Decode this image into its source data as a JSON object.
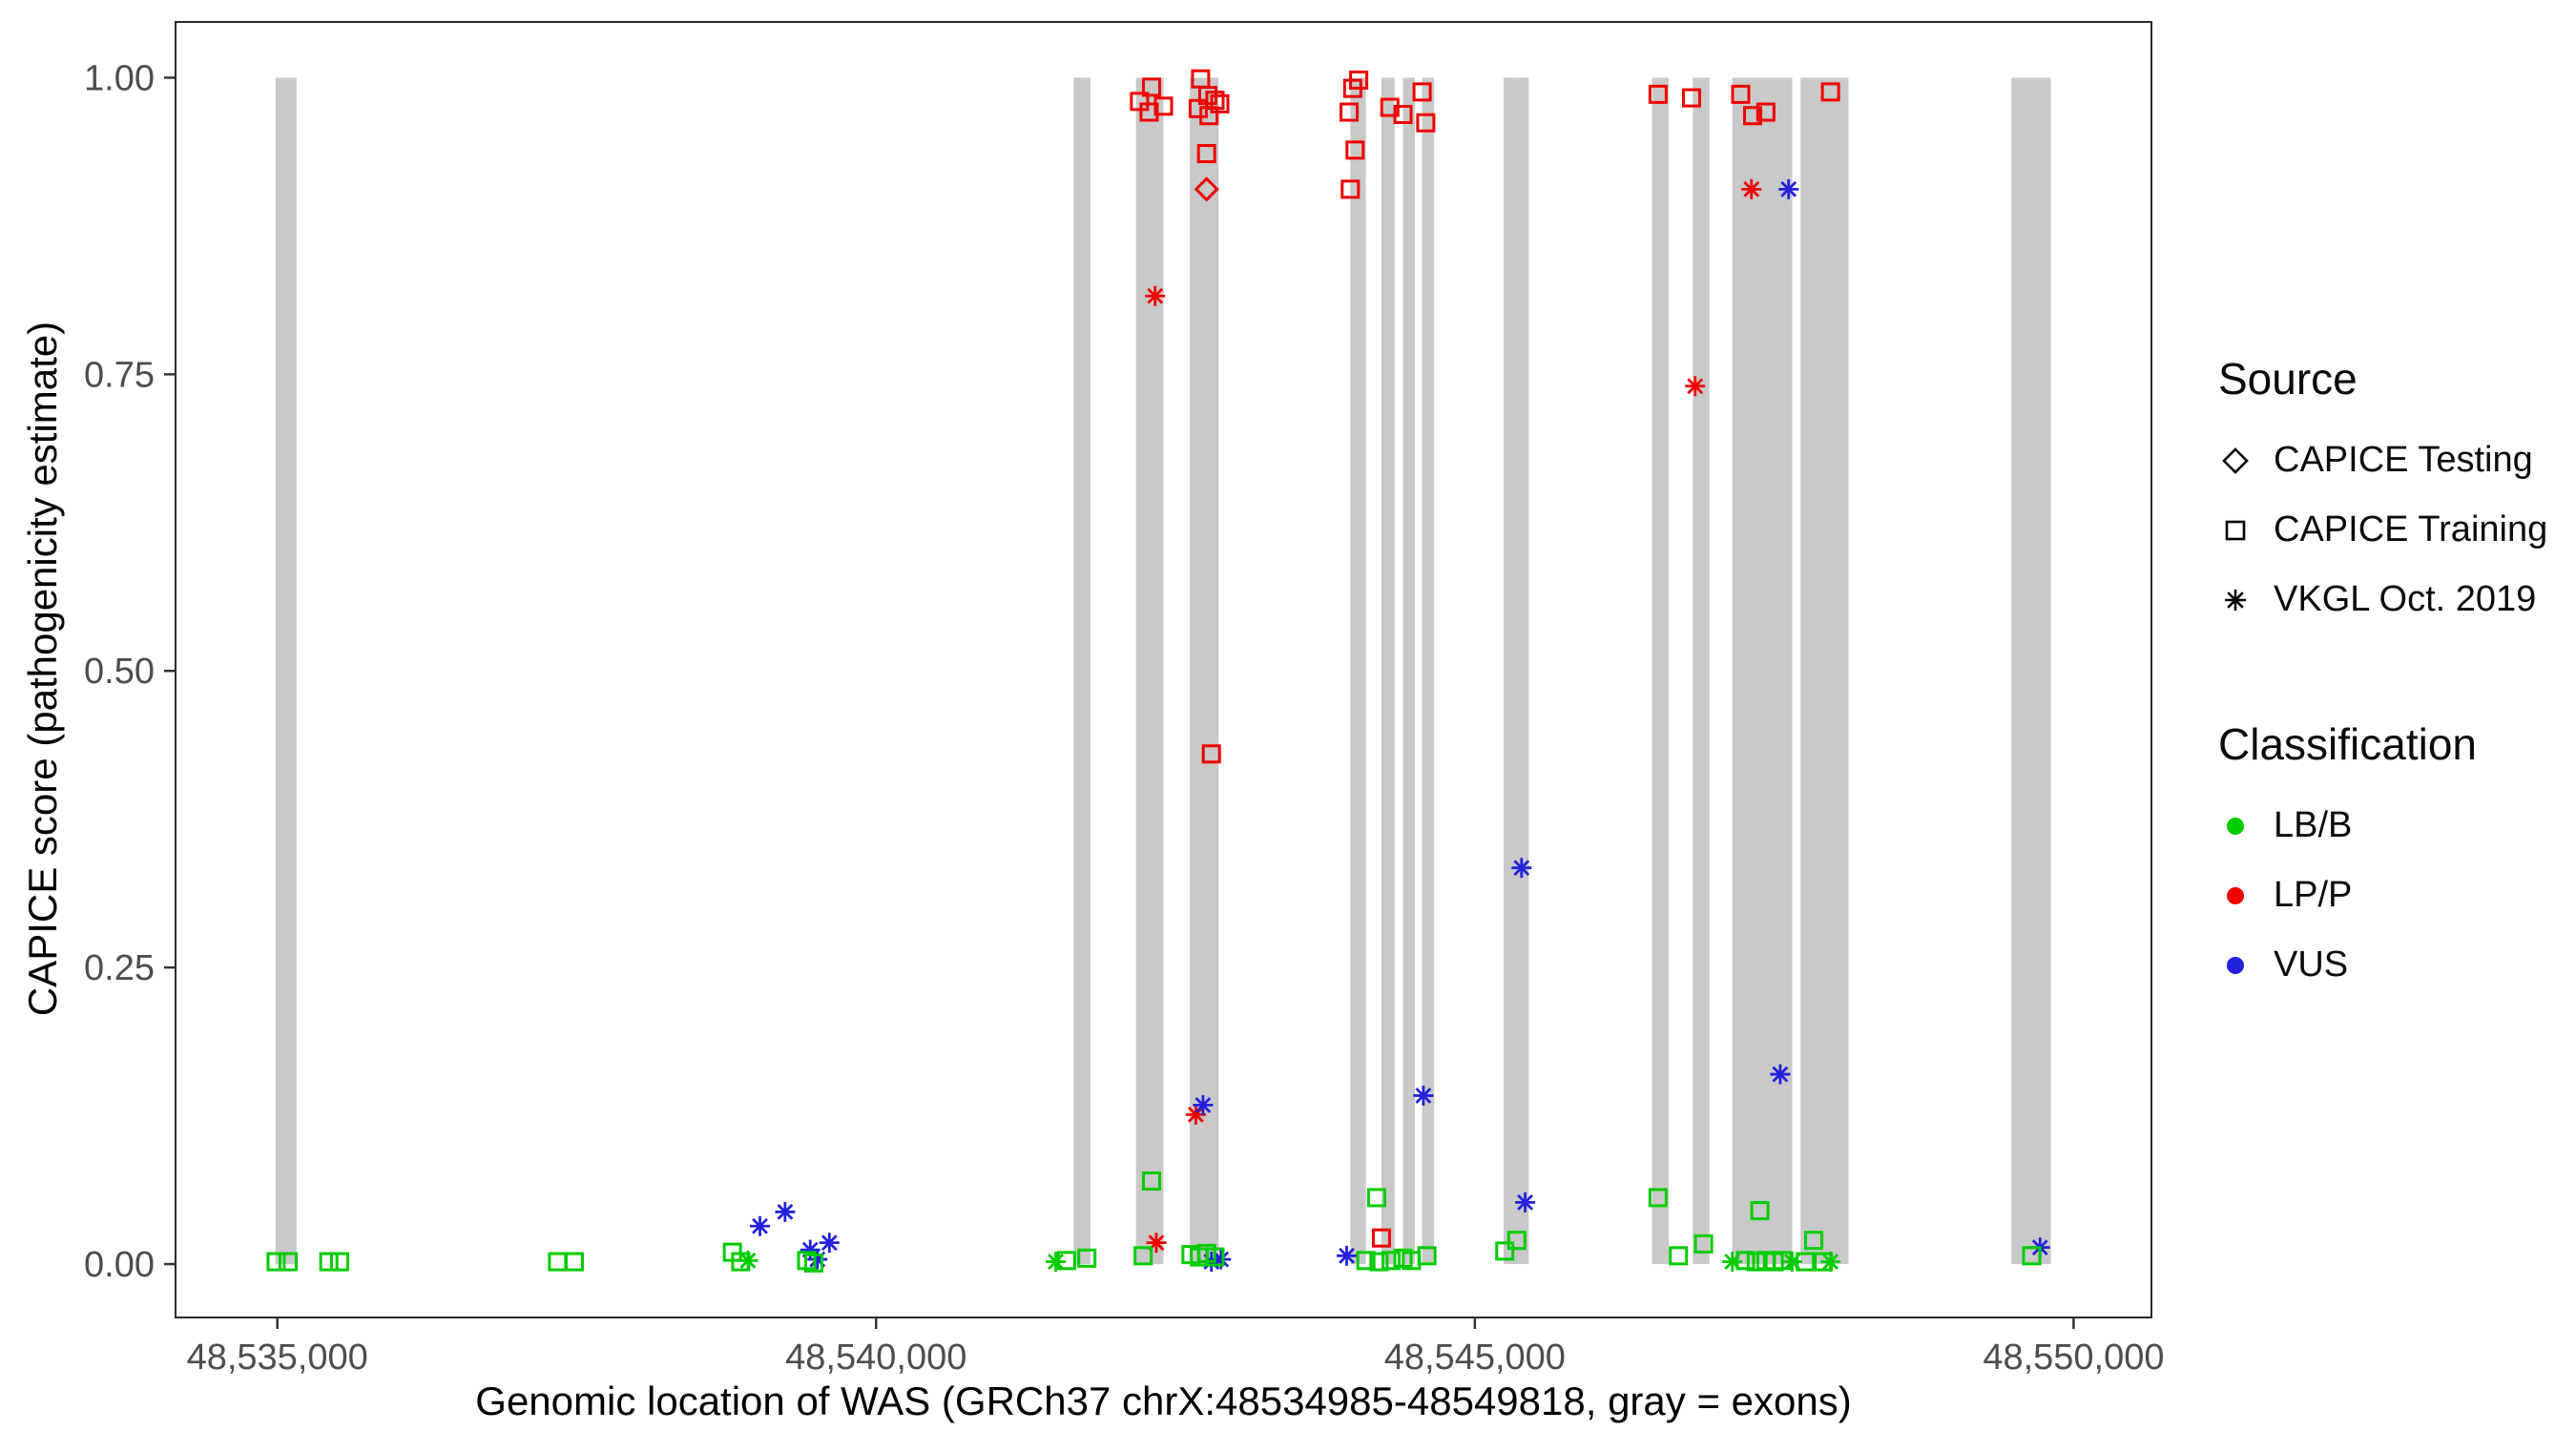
{
  "legend": {
    "source": {
      "title": "Source",
      "items": [
        {
          "label": "CAPICE Testing",
          "shape": "diamond"
        },
        {
          "label": "CAPICE Training",
          "shape": "square"
        },
        {
          "label": "VKGL Oct. 2019",
          "shape": "asterisk"
        }
      ]
    },
    "classification": {
      "title": "Classification",
      "items": [
        {
          "label": "LB/B",
          "color": "#00CC00"
        },
        {
          "label": "LP/P",
          "color": "#EE0000"
        },
        {
          "label": "VUS",
          "color": "#2222DD"
        }
      ]
    }
  },
  "chart_data": {
    "type": "scatter",
    "title": "",
    "xlabel": "Genomic location of WAS (GRCh37 chrX:48534985-48549818, gray = exons)",
    "ylabel": "CAPICE score (pathogenicity estimate)",
    "xlim": [
      48534150,
      48550650
    ],
    "ylim": [
      -0.045,
      1.047
    ],
    "xticks": [
      48535000,
      48540000,
      48545000,
      48550000
    ],
    "xtick_labels": [
      "48,535,000",
      "48,540,000",
      "48,545,000",
      "48,550,000"
    ],
    "yticks": [
      0,
      0.25,
      0.5,
      0.75,
      1
    ],
    "ytick_labels": [
      "0.00",
      "0.25",
      "0.50",
      "0.75",
      "1.00"
    ],
    "grid": "off",
    "legend_position": "right",
    "exon_color": "#C9C9C9",
    "exons": [
      [
        48534985,
        48535160
      ],
      [
        48541650,
        48541790
      ],
      [
        48542170,
        48542400
      ],
      [
        48542620,
        48542860
      ],
      [
        48543960,
        48544090
      ],
      [
        48544220,
        48544330
      ],
      [
        48544400,
        48544500
      ],
      [
        48544560,
        48544660
      ],
      [
        48545240,
        48545450
      ],
      [
        48546480,
        48546620
      ],
      [
        48546820,
        48546960
      ],
      [
        48547150,
        48547650
      ],
      [
        48547720,
        48548120
      ],
      [
        48549480,
        48549810
      ]
    ],
    "class_colors": {
      "LB/B": "#00CC00",
      "LP/P": "#EE0000",
      "VUS": "#2222DD"
    },
    "source_shapes": {
      "CAPICE Testing": "diamond",
      "CAPICE Training": "square",
      "VKGL Oct. 2019": "asterisk"
    },
    "points_format": [
      "x_genomic_position",
      "capice_score",
      "shape(source)",
      "classification"
    ],
    "points": [
      [
        48542200,
        0.98,
        "square",
        "LP/P"
      ],
      [
        48542300,
        0.992,
        "square",
        "LP/P"
      ],
      [
        48542280,
        0.971,
        "square",
        "LP/P"
      ],
      [
        48542400,
        0.976,
        "square",
        "LP/P"
      ],
      [
        48542710,
        0.999,
        "square",
        "LP/P"
      ],
      [
        48542770,
        0.985,
        "square",
        "LP/P"
      ],
      [
        48542830,
        0.981,
        "square",
        "LP/P"
      ],
      [
        48542870,
        0.978,
        "square",
        "LP/P"
      ],
      [
        48542690,
        0.974,
        "square",
        "LP/P"
      ],
      [
        48542780,
        0.968,
        "square",
        "LP/P"
      ],
      [
        48542760,
        0.936,
        "square",
        "LP/P"
      ],
      [
        48542800,
        0.43,
        "square",
        "LP/P"
      ],
      [
        48542760,
        0.906,
        "diamond",
        "LP/P"
      ],
      [
        48543980,
        0.991,
        "square",
        "LP/P"
      ],
      [
        48544030,
        0.998,
        "square",
        "LP/P"
      ],
      [
        48543950,
        0.971,
        "square",
        "LP/P"
      ],
      [
        48544000,
        0.939,
        "square",
        "LP/P"
      ],
      [
        48543960,
        0.906,
        "square",
        "LP/P"
      ],
      [
        48544290,
        0.975,
        "square",
        "LP/P"
      ],
      [
        48544400,
        0.969,
        "square",
        "LP/P"
      ],
      [
        48544560,
        0.988,
        "square",
        "LP/P"
      ],
      [
        48544590,
        0.962,
        "square",
        "LP/P"
      ],
      [
        48544220,
        0.022,
        "square",
        "LP/P"
      ],
      [
        48546530,
        0.986,
        "square",
        "LP/P"
      ],
      [
        48546810,
        0.983,
        "square",
        "LP/P"
      ],
      [
        48547220,
        0.986,
        "square",
        "LP/P"
      ],
      [
        48547320,
        0.968,
        "square",
        "LP/P"
      ],
      [
        48547430,
        0.971,
        "square",
        "LP/P"
      ],
      [
        48547970,
        0.988,
        "square",
        "LP/P"
      ],
      [
        48542330,
        0.816,
        "asterisk",
        "LP/P"
      ],
      [
        48542670,
        0.126,
        "asterisk",
        "LP/P"
      ],
      [
        48542340,
        0.018,
        "asterisk",
        "LP/P"
      ],
      [
        48546840,
        0.74,
        "asterisk",
        "LP/P"
      ],
      [
        48547310,
        0.906,
        "asterisk",
        "LP/P"
      ],
      [
        48539030,
        0.032,
        "asterisk",
        "VUS"
      ],
      [
        48539240,
        0.044,
        "asterisk",
        "VUS"
      ],
      [
        48539450,
        0.012,
        "asterisk",
        "VUS"
      ],
      [
        48539610,
        0.018,
        "asterisk",
        "VUS"
      ],
      [
        48539510,
        0.004,
        "asterisk",
        "VUS"
      ],
      [
        48542730,
        0.134,
        "asterisk",
        "VUS"
      ],
      [
        48542800,
        0.002,
        "asterisk",
        "VUS"
      ],
      [
        48542880,
        0.004,
        "asterisk",
        "VUS"
      ],
      [
        48543930,
        0.007,
        "asterisk",
        "VUS"
      ],
      [
        48544570,
        0.142,
        "asterisk",
        "VUS"
      ],
      [
        48545390,
        0.334,
        "asterisk",
        "VUS"
      ],
      [
        48545420,
        0.052,
        "asterisk",
        "VUS"
      ],
      [
        48547550,
        0.16,
        "asterisk",
        "VUS"
      ],
      [
        48547620,
        0.906,
        "asterisk",
        "VUS"
      ],
      [
        48549720,
        0.014,
        "asterisk",
        "VUS"
      ],
      [
        48534990,
        0.002,
        "square",
        "LB/B"
      ],
      [
        48535090,
        0.002,
        "square",
        "LB/B"
      ],
      [
        48535430,
        0.002,
        "square",
        "LB/B"
      ],
      [
        48535520,
        0.002,
        "square",
        "LB/B"
      ],
      [
        48537340,
        0.002,
        "square",
        "LB/B"
      ],
      [
        48537480,
        0.002,
        "square",
        "LB/B"
      ],
      [
        48538800,
        0.01,
        "square",
        "LB/B"
      ],
      [
        48538870,
        0.002,
        "square",
        "LB/B"
      ],
      [
        48539420,
        0.003,
        "square",
        "LB/B"
      ],
      [
        48539480,
        0.001,
        "square",
        "LB/B"
      ],
      [
        48541590,
        0.003,
        "square",
        "LB/B"
      ],
      [
        48541760,
        0.005,
        "square",
        "LB/B"
      ],
      [
        48542230,
        0.007,
        "square",
        "LB/B"
      ],
      [
        48542300,
        0.07,
        "square",
        "LB/B"
      ],
      [
        48542630,
        0.008,
        "square",
        "LB/B"
      ],
      [
        48542700,
        0.006,
        "square",
        "LB/B"
      ],
      [
        48542760,
        0.009,
        "square",
        "LB/B"
      ],
      [
        48542830,
        0.006,
        "square",
        "LB/B"
      ],
      [
        48544180,
        0.056,
        "square",
        "LB/B"
      ],
      [
        48544090,
        0.003,
        "square",
        "LB/B"
      ],
      [
        48544200,
        0.002,
        "square",
        "LB/B"
      ],
      [
        48544300,
        0.003,
        "square",
        "LB/B"
      ],
      [
        48544400,
        0.005,
        "square",
        "LB/B"
      ],
      [
        48544470,
        0.003,
        "square",
        "LB/B"
      ],
      [
        48544600,
        0.007,
        "square",
        "LB/B"
      ],
      [
        48545250,
        0.011,
        "square",
        "LB/B"
      ],
      [
        48545350,
        0.02,
        "square",
        "LB/B"
      ],
      [
        48546530,
        0.056,
        "square",
        "LB/B"
      ],
      [
        48546700,
        0.007,
        "square",
        "LB/B"
      ],
      [
        48546910,
        0.017,
        "square",
        "LB/B"
      ],
      [
        48547380,
        0.045,
        "square",
        "LB/B"
      ],
      [
        48547260,
        0.003,
        "square",
        "LB/B"
      ],
      [
        48547350,
        0.002,
        "square",
        "LB/B"
      ],
      [
        48547430,
        0.003,
        "square",
        "LB/B"
      ],
      [
        48547500,
        0.002,
        "square",
        "LB/B"
      ],
      [
        48547570,
        0.003,
        "square",
        "LB/B"
      ],
      [
        48547760,
        0.002,
        "square",
        "LB/B"
      ],
      [
        48547830,
        0.02,
        "square",
        "LB/B"
      ],
      [
        48547910,
        0.002,
        "square",
        "LB/B"
      ],
      [
        48549650,
        0.007,
        "square",
        "LB/B"
      ],
      [
        48538930,
        0.003,
        "asterisk",
        "LB/B"
      ],
      [
        48541500,
        0.002,
        "asterisk",
        "LB/B"
      ],
      [
        48547150,
        0.002,
        "asterisk",
        "LB/B"
      ],
      [
        48547650,
        0.002,
        "asterisk",
        "LB/B"
      ],
      [
        48547970,
        0.002,
        "asterisk",
        "LB/B"
      ]
    ]
  }
}
